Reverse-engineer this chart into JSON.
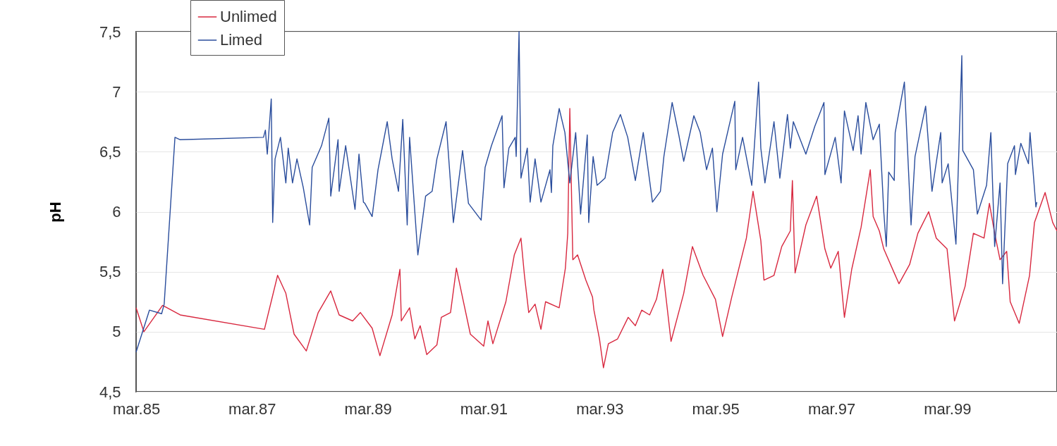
{
  "chart_data": {
    "type": "line",
    "ylabel": "pH",
    "legend": "top left",
    "grid": "y",
    "line_style": "solid",
    "xlim": [
      "1985-03-01",
      "2001-01-21"
    ],
    "xticks": [
      {
        "value": "1985-03-01",
        "label": "mar.85"
      },
      {
        "value": "1987-03-01",
        "label": "mar.87"
      },
      {
        "value": "1989-03-01",
        "label": "mar.89"
      },
      {
        "value": "1991-03-01",
        "label": "mar.91"
      },
      {
        "value": "1993-03-01",
        "label": "mar.93"
      },
      {
        "value": "1995-03-01",
        "label": "mar.95"
      },
      {
        "value": "1997-03-01",
        "label": "mar.97"
      },
      {
        "value": "1999-03-01",
        "label": "mar.99"
      }
    ],
    "ylim": [
      4.5,
      7.5
    ],
    "yticks": [
      {
        "value": 4.5,
        "label": "4,5"
      },
      5,
      {
        "value": 5.5,
        "label": "5,5"
      },
      6,
      {
        "value": 6.5,
        "label": "6,5"
      },
      7,
      {
        "value": 7.5,
        "label": "7,5"
      }
    ],
    "series": [
      {
        "name": "Unlimed",
        "color": "#d8283f",
        "x": [
          "1985-03-01",
          "1985-04-19",
          "1985-08-15",
          "1985-12-04",
          "1987-05-19",
          "1987-08-10",
          "1987-10-01",
          "1987-11-22",
          "1988-02-07",
          "1988-04-22",
          "1988-07-10",
          "1988-09-01",
          "1988-11-25",
          "1989-01-13",
          "1989-03-28",
          "1989-05-16",
          "1989-08-01",
          "1989-09-19",
          "1989-09-28",
          "1989-11-19",
          "1989-12-22",
          "1990-01-25",
          "1990-03-07",
          "1990-05-10",
          "1990-06-07",
          "1990-08-04",
          "1990-09-10",
          "1990-10-10",
          "1990-12-07",
          "1991-03-01",
          "1991-03-28",
          "1991-04-28",
          "1991-07-19",
          "1991-09-10",
          "1991-10-22",
          "1991-11-13",
          "1991-12-10",
          "1992-01-19",
          "1992-02-25",
          "1992-03-25",
          "1992-06-19",
          "1992-07-28",
          "1992-08-12",
          "1992-08-25",
          "1992-09-13",
          "1992-10-13",
          "1992-12-04",
          "1993-01-15",
          "1993-01-24",
          "1993-02-28",
          "1993-03-25",
          "1993-04-25",
          "1993-06-22",
          "1993-08-28",
          "1993-10-12",
          "1993-11-21",
          "1994-01-10",
          "1994-02-22",
          "1994-04-03",
          "1994-05-25",
          "1994-08-13",
          "1994-10-07",
          "1994-12-13",
          "1995-03-01",
          "1995-04-15",
          "1995-06-12",
          "1995-09-12",
          "1995-10-24",
          "1995-12-12",
          "1996-01-01",
          "1996-03-04",
          "1996-04-22",
          "1996-06-15",
          "1996-06-28",
          "1996-07-15",
          "1996-09-21",
          "1996-11-28",
          "1997-01-19",
          "1997-02-25",
          "1997-04-13",
          "1997-05-22",
          "1997-07-07",
          "1997-09-04",
          "1997-11-01",
          "1997-11-19",
          "1997-12-28",
          "1998-01-25",
          "1998-04-01",
          "1998-05-01",
          "1998-07-07",
          "1998-08-28",
          "1998-11-04",
          "1998-12-22",
          "1999-02-28",
          "1999-04-16",
          "1999-06-22",
          "1999-08-13",
          "1999-10-19",
          "1999-11-22",
          "1999-12-25",
          "2000-01-28",
          "2000-03-10",
          "2000-04-01",
          "2000-05-28",
          "2000-08-01",
          "2000-09-01",
          "2000-11-07",
          "2000-12-25",
          "2001-01-21"
        ],
        "values": [
          5.2,
          5.0,
          5.22,
          5.14,
          5.02,
          5.47,
          5.32,
          4.98,
          4.84,
          5.16,
          5.34,
          5.14,
          5.09,
          5.16,
          5.03,
          4.8,
          5.14,
          5.52,
          5.09,
          5.2,
          4.94,
          5.05,
          4.81,
          4.89,
          5.12,
          5.16,
          5.53,
          5.34,
          4.98,
          4.88,
          5.09,
          4.9,
          5.25,
          5.64,
          5.78,
          5.47,
          5.16,
          5.23,
          5.02,
          5.25,
          5.2,
          5.53,
          5.82,
          6.86,
          5.6,
          5.64,
          5.43,
          5.29,
          5.18,
          4.94,
          4.7,
          4.9,
          4.94,
          5.12,
          5.05,
          5.18,
          5.14,
          5.27,
          5.52,
          4.92,
          5.32,
          5.71,
          5.47,
          5.27,
          4.96,
          5.29,
          5.78,
          6.17,
          5.76,
          5.43,
          5.47,
          5.71,
          5.84,
          6.26,
          5.49,
          5.89,
          6.13,
          5.69,
          5.53,
          5.67,
          5.12,
          5.52,
          5.87,
          6.35,
          5.96,
          5.84,
          5.69,
          5.49,
          5.4,
          5.56,
          5.82,
          6.0,
          5.78,
          5.69,
          5.09,
          5.38,
          5.82,
          5.78,
          6.07,
          5.82,
          5.6,
          5.67,
          5.25,
          5.07,
          5.47,
          5.91,
          6.16,
          5.91,
          5.84
        ]
      },
      {
        "name": "Limed",
        "color": "#2a4d9c",
        "x": [
          "1985-03-01",
          "1985-05-24",
          "1985-08-09",
          "1985-08-25",
          "1985-11-01",
          "1985-12-04",
          "1987-05-13",
          "1987-05-25",
          "1987-06-06",
          "1987-07-01",
          "1987-07-10",
          "1987-07-25",
          "1987-08-28",
          "1987-10-01",
          "1987-10-16",
          "1987-11-12",
          "1987-12-10",
          "1988-01-19",
          "1988-02-28",
          "1988-03-15",
          "1988-05-13",
          "1988-06-28",
          "1988-07-10",
          "1988-08-25",
          "1988-09-01",
          "1988-10-12",
          "1988-12-10",
          "1989-01-04",
          "1989-02-01",
          "1989-02-10",
          "1989-03-28",
          "1989-05-04",
          "1989-07-01",
          "1989-08-01",
          "1989-09-10",
          "1989-10-07",
          "1989-11-04",
          "1989-11-19",
          "1990-01-10",
          "1990-02-28",
          "1990-04-10",
          "1990-05-10",
          "1990-07-07",
          "1990-08-22",
          "1990-10-19",
          "1990-11-25",
          "1991-02-13",
          "1991-03-10",
          "1991-04-19",
          "1991-06-25",
          "1991-07-07",
          "1991-08-07",
          "1991-09-16",
          "1991-09-22",
          "1991-10-10",
          "1991-10-22",
          "1991-12-01",
          "1991-12-19",
          "1992-01-19",
          "1992-02-25",
          "1992-04-22",
          "1992-05-01",
          "1992-05-10",
          "1992-06-19",
          "1992-07-25",
          "1992-08-25",
          "1992-10-01",
          "1992-11-01",
          "1992-12-13",
          "1992-12-22",
          "1993-01-19",
          "1993-02-13",
          "1993-04-04",
          "1993-05-22",
          "1993-07-10",
          "1993-08-25",
          "1993-10-12",
          "1993-12-01",
          "1994-01-28",
          "1994-03-19",
          "1994-04-10",
          "1994-06-01",
          "1994-07-13",
          "1994-08-13",
          "1994-10-16",
          "1994-11-25",
          "1995-01-04",
          "1995-02-10",
          "1995-03-10",
          "1995-04-15",
          "1995-05-25",
          "1995-07-01",
          "1995-07-07",
          "1995-08-19",
          "1995-10-16",
          "1995-11-28",
          "1995-12-12",
          "1996-01-07",
          "1996-03-04",
          "1996-04-10",
          "1996-05-28",
          "1996-06-15",
          "1996-07-04",
          "1996-09-21",
          "1996-11-16",
          "1997-01-13",
          "1997-01-19",
          "1997-03-25",
          "1997-05-01",
          "1997-05-22",
          "1997-07-16",
          "1997-08-16",
          "1997-09-04",
          "1997-10-04",
          "1997-11-19",
          "1997-12-28",
          "1998-01-25",
          "1998-02-10",
          "1998-02-25",
          "1998-04-01",
          "1998-04-07",
          "1998-06-04",
          "1998-07-16",
          "1998-08-10",
          "1998-10-16",
          "1998-11-25",
          "1999-01-19",
          "1999-01-28",
          "1999-03-07",
          "1999-04-25",
          "1999-06-01",
          "1999-06-07",
          "1999-08-13",
          "1999-09-07",
          "1999-11-04",
          "1999-12-01",
          "1999-12-25",
          "2000-01-28",
          "2000-02-13",
          "2000-03-16",
          "2000-04-28",
          "2000-05-04",
          "2000-06-07",
          "2000-07-25",
          "2000-08-04",
          "2000-09-10",
          "2000-09-16"
        ],
        "values": [
          4.83,
          5.18,
          5.15,
          5.23,
          6.62,
          6.6,
          6.62,
          6.68,
          6.48,
          6.94,
          5.91,
          6.44,
          6.62,
          6.24,
          6.53,
          6.24,
          6.44,
          6.2,
          5.89,
          6.37,
          6.55,
          6.78,
          6.13,
          6.6,
          6.17,
          6.55,
          6.02,
          6.48,
          6.08,
          6.07,
          5.96,
          6.35,
          6.75,
          6.44,
          6.17,
          6.77,
          5.89,
          6.62,
          5.64,
          6.13,
          6.17,
          6.44,
          6.75,
          5.91,
          6.51,
          6.07,
          5.93,
          6.37,
          6.55,
          6.8,
          6.2,
          6.53,
          6.62,
          6.46,
          7.5,
          6.28,
          6.53,
          6.08,
          6.44,
          6.08,
          6.35,
          6.16,
          6.55,
          6.86,
          6.66,
          6.24,
          6.66,
          5.98,
          6.64,
          5.91,
          6.46,
          6.22,
          6.28,
          6.66,
          6.81,
          6.62,
          6.26,
          6.66,
          6.08,
          6.17,
          6.46,
          6.91,
          6.64,
          6.42,
          6.8,
          6.66,
          6.35,
          6.53,
          6.0,
          6.48,
          6.71,
          6.92,
          6.35,
          6.62,
          6.22,
          7.08,
          6.53,
          6.24,
          6.75,
          6.28,
          6.81,
          6.53,
          6.75,
          6.48,
          6.71,
          6.91,
          6.31,
          6.62,
          6.24,
          6.84,
          6.51,
          6.8,
          6.48,
          6.91,
          6.6,
          6.73,
          6.0,
          5.71,
          6.33,
          6.26,
          6.66,
          7.08,
          5.89,
          6.46,
          6.88,
          6.17,
          6.66,
          6.24,
          6.4,
          5.73,
          7.3,
          6.51,
          6.35,
          5.98,
          6.22,
          6.66,
          5.71,
          6.24,
          5.4,
          6.4,
          6.55,
          6.31,
          6.57,
          6.4,
          6.66,
          6.04,
          6.08
        ]
      }
    ]
  }
}
